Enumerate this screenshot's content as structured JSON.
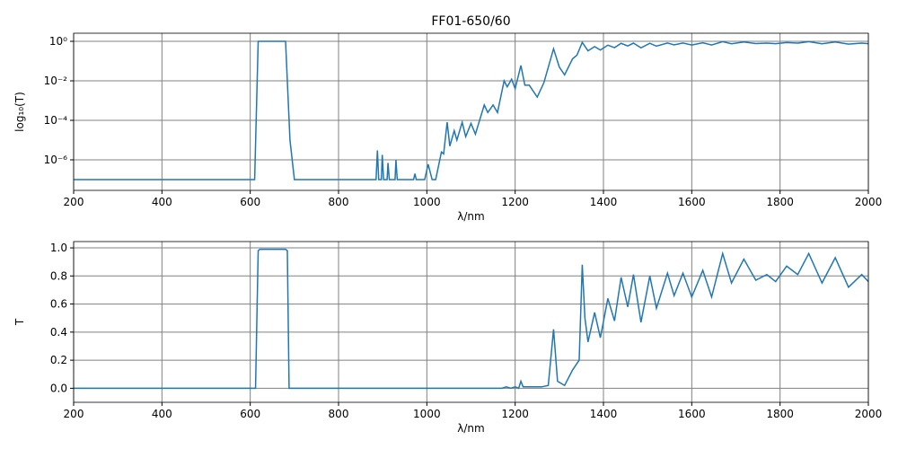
{
  "chart_data": [
    {
      "type": "line",
      "title": "FF01-650/60",
      "xlabel": "λ/nm",
      "ylabel": "log₁₀(T)",
      "yscale": "log",
      "grid": true,
      "color": "#1f77b4",
      "xlim": [
        200,
        2000
      ],
      "xticks": [
        200,
        400,
        600,
        800,
        1000,
        1200,
        1400,
        1600,
        1800,
        2000
      ],
      "ylim": [
        2.85e-08,
        2.57
      ],
      "yticks": [
        {
          "value": 1e-06,
          "label": "10⁻⁶"
        },
        {
          "value": 0.0001,
          "label": "10⁻⁴"
        },
        {
          "value": 0.01,
          "label": "10⁻²"
        },
        {
          "value": 1,
          "label": "10⁰"
        }
      ],
      "x": [
        200,
        610,
        618,
        680,
        690,
        700,
        885,
        888,
        891,
        897,
        899,
        902,
        910,
        912,
        915,
        928,
        930,
        933,
        970,
        973,
        976,
        995,
        1003,
        1012,
        1020,
        1033,
        1038,
        1046,
        1052,
        1062,
        1068,
        1080,
        1088,
        1100,
        1110,
        1130,
        1138,
        1150,
        1160,
        1175,
        1182,
        1192,
        1200,
        1213,
        1222,
        1232,
        1250,
        1265,
        1287,
        1300,
        1312,
        1330,
        1340,
        1352,
        1365,
        1380,
        1393,
        1410,
        1425,
        1440,
        1455,
        1468,
        1485,
        1505,
        1520,
        1545,
        1560,
        1580,
        1600,
        1625,
        1645,
        1670,
        1690,
        1718,
        1745,
        1770,
        1790,
        1815,
        1840,
        1865,
        1895,
        1925,
        1955,
        1985,
        2000
      ],
      "values": [
        1e-07,
        1e-07,
        1,
        1,
        1e-05,
        1e-07,
        1e-07,
        3e-06,
        1e-07,
        1e-07,
        1.8e-06,
        1e-07,
        1e-07,
        7e-07,
        1e-07,
        1e-07,
        1e-06,
        1e-07,
        1e-07,
        2e-07,
        1e-07,
        1e-07,
        6e-07,
        1e-07,
        1e-07,
        2.5e-06,
        2e-06,
        8e-05,
        5e-06,
        3e-05,
        1e-05,
        8e-05,
        1.5e-05,
        7e-05,
        2e-05,
        0.0006,
        0.00025,
        0.0006,
        0.00025,
        0.01,
        0.005,
        0.012,
        0.004,
        0.06,
        0.006,
        0.006,
        0.0015,
        0.008,
        0.42,
        0.05,
        0.02,
        0.13,
        0.2,
        0.88,
        0.33,
        0.54,
        0.36,
        0.64,
        0.48,
        0.79,
        0.58,
        0.81,
        0.47,
        0.8,
        0.57,
        0.82,
        0.66,
        0.82,
        0.65,
        0.84,
        0.65,
        0.96,
        0.75,
        0.92,
        0.77,
        0.81,
        0.76,
        0.87,
        0.81,
        0.96,
        0.75,
        0.93,
        0.72,
        0.81,
        0.76
      ]
    },
    {
      "type": "line",
      "xlabel": "λ/nm",
      "ylabel": "T",
      "grid": true,
      "color": "#1f77b4",
      "xlim": [
        200,
        2000
      ],
      "xticks": [
        200,
        400,
        600,
        800,
        1000,
        1200,
        1400,
        1600,
        1800,
        2000
      ],
      "ylim": [
        -0.1,
        1.045
      ],
      "yticks": [
        {
          "value": 0,
          "label": "0.0"
        },
        {
          "value": 0.2,
          "label": "0.2"
        },
        {
          "value": 0.4,
          "label": "0.4"
        },
        {
          "value": 0.6,
          "label": "0.6"
        },
        {
          "value": 0.8,
          "label": "0.8"
        },
        {
          "value": 1,
          "label": "1.0"
        }
      ],
      "x": [
        200,
        612,
        618,
        622,
        680,
        684,
        688,
        1170,
        1180,
        1190,
        1200,
        1208,
        1213,
        1218,
        1230,
        1260,
        1275,
        1287,
        1296,
        1312,
        1330,
        1345,
        1352,
        1358,
        1365,
        1380,
        1393,
        1410,
        1425,
        1440,
        1455,
        1468,
        1485,
        1505,
        1520,
        1545,
        1560,
        1580,
        1600,
        1625,
        1645,
        1670,
        1690,
        1718,
        1745,
        1770,
        1790,
        1815,
        1840,
        1865,
        1895,
        1925,
        1955,
        1985,
        2000
      ],
      "values": [
        0,
        0,
        0.98,
        0.99,
        0.99,
        0.98,
        0,
        0,
        0.01,
        0,
        0.01,
        0,
        0.05,
        0.01,
        0.01,
        0.01,
        0.02,
        0.42,
        0.05,
        0.02,
        0.13,
        0.2,
        0.88,
        0.5,
        0.33,
        0.54,
        0.36,
        0.64,
        0.48,
        0.79,
        0.58,
        0.81,
        0.47,
        0.8,
        0.57,
        0.82,
        0.66,
        0.82,
        0.65,
        0.84,
        0.65,
        0.96,
        0.75,
        0.92,
        0.77,
        0.81,
        0.76,
        0.87,
        0.81,
        0.96,
        0.75,
        0.93,
        0.72,
        0.81,
        0.76
      ]
    }
  ]
}
